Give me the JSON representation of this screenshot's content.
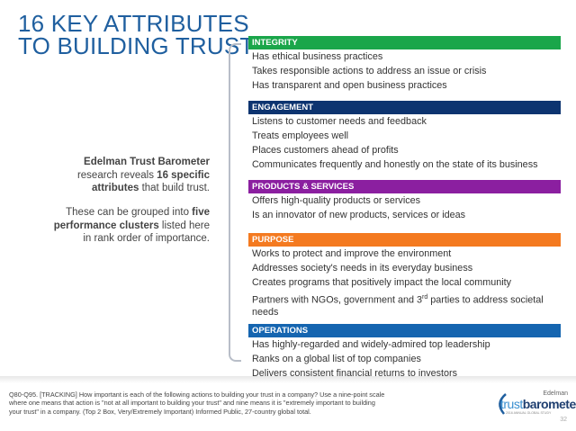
{
  "title": {
    "line1": "16 KEY ATTRIBUTES",
    "line2": "TO BUILDING TRUST"
  },
  "intro": {
    "p1_a": "Edelman Trust Barometer",
    "p1_b": "research reveals ",
    "p1_c": "16 specific attributes",
    "p1_d": " that build trust.",
    "p2_a": "These can be grouped into ",
    "p2_b": "five performance clusters",
    "p2_c": " listed here in rank order of importance."
  },
  "sections": [
    {
      "label": "INTEGRITY",
      "color": "#1aa64a",
      "items": [
        "Has ethical business practices",
        "Takes responsible actions to address an issue or crisis",
        "Has transparent and open business practices"
      ]
    },
    {
      "label": "ENGAGEMENT",
      "color": "#0d3470",
      "items": [
        "Listens to customer needs and feedback",
        "Treats employees well",
        "Places customers ahead of profits",
        "Communicates frequently and honestly on the state of its business"
      ]
    },
    {
      "label": "PRODUCTS & SERVICES",
      "color": "#8b1fa0",
      "items": [
        "Offers high-quality products or services",
        "Is an innovator of new products, services or ideas"
      ]
    },
    {
      "label": "PURPOSE",
      "color": "#f47a20",
      "items": [
        "Works to protect and improve the environment",
        "Addresses society's needs in its everyday business",
        "Creates programs that positively impact the local community",
        "Partners with NGOs, government and 3rd parties to address societal needs"
      ]
    },
    {
      "label": "OPERATIONS",
      "color": "#1565b0",
      "items": [
        "Has highly-regarded and widely-admired top leadership",
        "Ranks on a global list of top companies",
        "Delivers consistent financial returns to investors"
      ]
    }
  ],
  "footer": "Q80-Q95. [TRACKING] How important is each of the following actions to building your trust in a company? Use a nine-point scale where one means that action is \"not at all important to building your trust\" and nine means it is \"extremely important to building your trust\" in a company. (Top 2 Box, Very/Extremely Important) Informed Public, 27-country global total.",
  "logo": {
    "brand": "Edelman",
    "name_a": "trust",
    "name_b": "barometer",
    "sub": "2016 ANNUAL GLOBAL STUDY"
  },
  "page_number": "32"
}
